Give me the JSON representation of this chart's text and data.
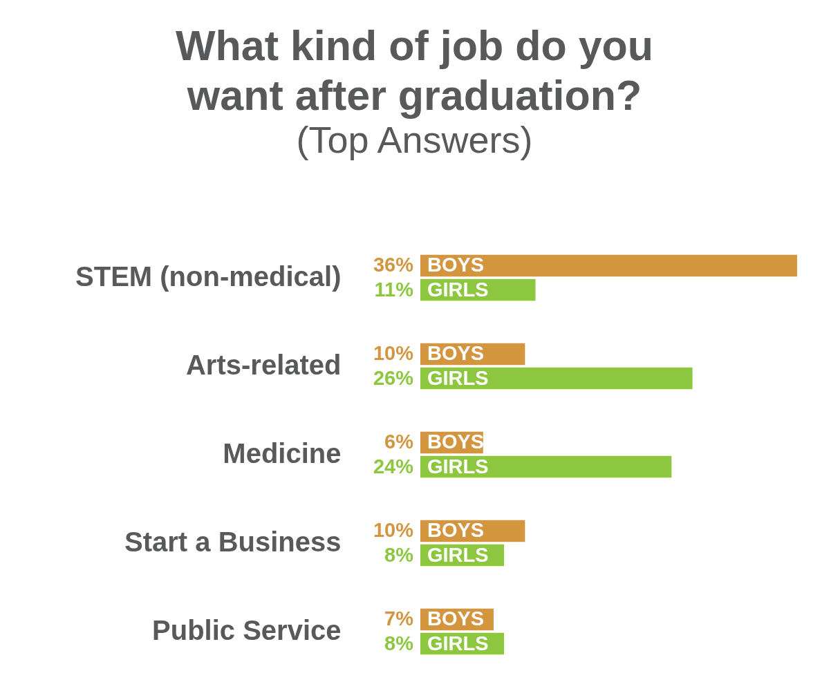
{
  "chart_data": {
    "type": "bar",
    "orientation": "horizontal",
    "title": [
      "What kind of job do you",
      "want after graduation?"
    ],
    "subtitle": "(Top Answers)",
    "categories": [
      "STEM (non-medical)",
      "Arts-related",
      "Medicine",
      "Start a Business",
      "Public Service"
    ],
    "series": [
      {
        "name": "BOYS",
        "color": "#d4953f",
        "values": [
          36,
          10,
          6,
          10,
          7
        ],
        "value_labels": [
          "36%",
          "10%",
          "6%",
          "10%",
          "7%"
        ]
      },
      {
        "name": "GIRLS",
        "color": "#8dc63f",
        "values": [
          11,
          26,
          24,
          8,
          8
        ],
        "value_labels": [
          "11%",
          "26%",
          "24%",
          "8%",
          "8%"
        ]
      }
    ],
    "legend": false,
    "grid": false
  }
}
